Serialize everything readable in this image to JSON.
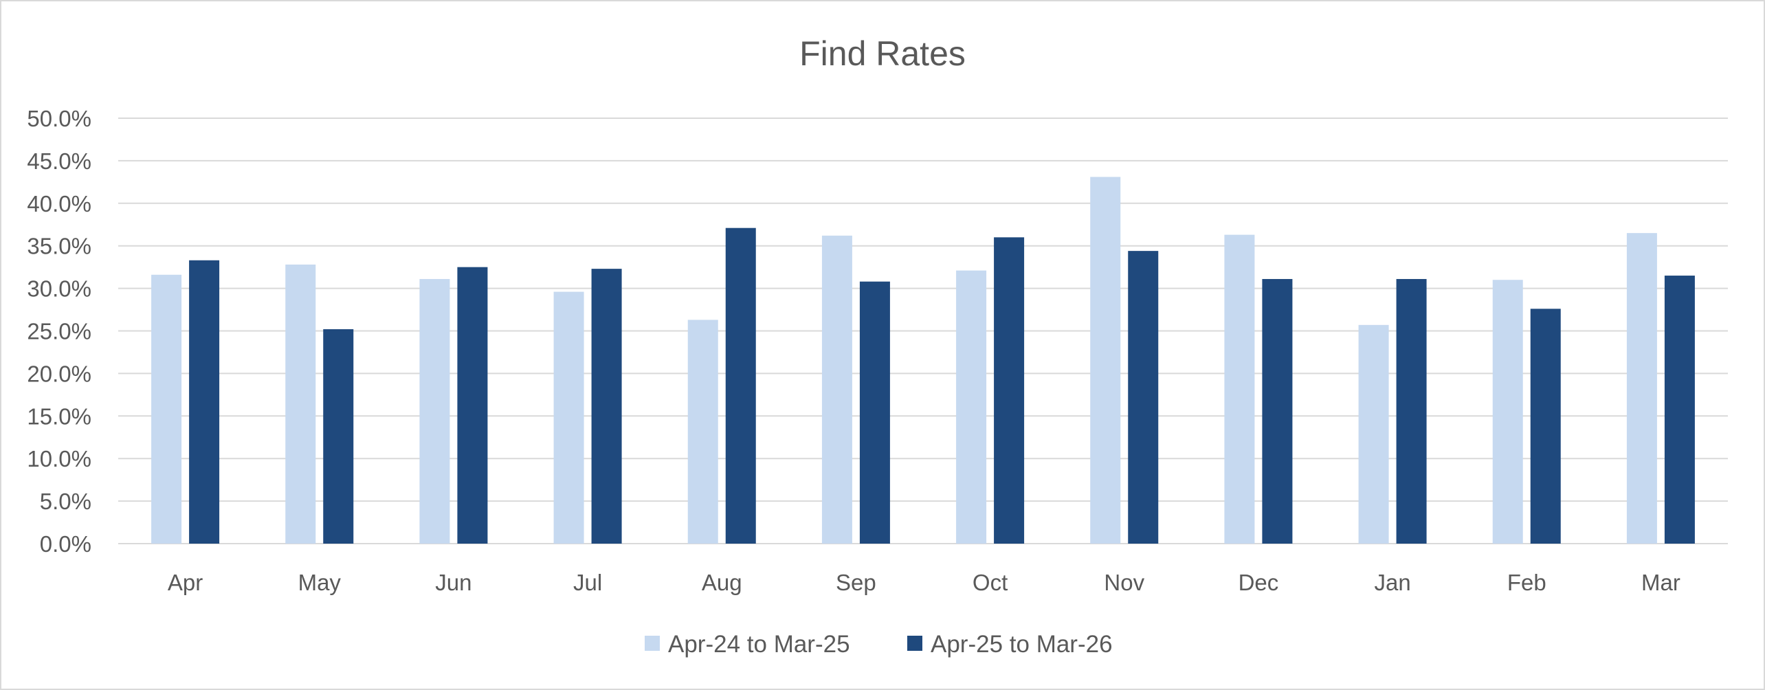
{
  "chart_data": {
    "type": "bar",
    "title": "Find Rates",
    "xlabel": "",
    "ylabel": "",
    "categories": [
      "Apr",
      "May",
      "Jun",
      "Jul",
      "Aug",
      "Sep",
      "Oct",
      "Nov",
      "Dec",
      "Jan",
      "Feb",
      "Mar"
    ],
    "series": [
      {
        "name": "Apr-24 to Mar-25",
        "color": "#c6d9f0",
        "values": [
          31.6,
          32.8,
          31.1,
          29.6,
          26.3,
          36.2,
          32.1,
          43.1,
          36.3,
          25.7,
          31.0,
          36.5
        ]
      },
      {
        "name": "Apr-25 to Mar-26",
        "color": "#1f497d",
        "values": [
          33.3,
          25.2,
          32.5,
          32.3,
          37.1,
          30.8,
          36.0,
          34.4,
          31.1,
          31.1,
          27.6,
          31.5
        ]
      }
    ],
    "ylim": [
      0,
      50
    ],
    "yticks": [
      "0.0%",
      "5.0%",
      "10.0%",
      "15.0%",
      "20.0%",
      "25.0%",
      "30.0%",
      "35.0%",
      "40.0%",
      "45.0%",
      "50.0%"
    ],
    "grid": true,
    "legend_position": "bottom",
    "gridline_color": "#d9d9d9",
    "text_color": "#595959"
  }
}
